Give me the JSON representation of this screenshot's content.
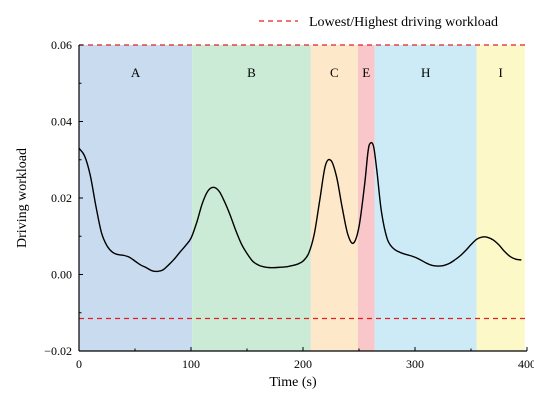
{
  "chart_data": {
    "type": "line",
    "title": "",
    "xlabel": "Time (s)",
    "ylabel": "Driving workload",
    "xlim": [
      0,
      400
    ],
    "ylim": [
      -0.02,
      0.06
    ],
    "x_ticks": [
      0,
      100,
      200,
      300,
      400
    ],
    "x_tick_labels": [
      "0",
      "100",
      "200",
      "300",
      "400"
    ],
    "y_ticks": [
      -0.02,
      0.0,
      0.02,
      0.04,
      0.06
    ],
    "y_tick_labels": [
      "−0.02",
      "0.00",
      "0.02",
      "0.04",
      "0.06"
    ],
    "grid": false,
    "legend": {
      "position": "top-right",
      "entries": [
        {
          "label": "Lowest/Highest driving workload",
          "color": "#e02020",
          "style": "dashed"
        }
      ]
    },
    "reference_lines": [
      {
        "y": 0.06,
        "color": "#e02020",
        "style": "dashed"
      },
      {
        "y": -0.0115,
        "color": "#e02020",
        "style": "dashed"
      }
    ],
    "phases": [
      {
        "label": "A",
        "start": 0,
        "end": 101,
        "color": "#c9dcef"
      },
      {
        "label": "B",
        "start": 101,
        "end": 207,
        "color": "#ccebd7"
      },
      {
        "label": "C",
        "start": 207,
        "end": 249,
        "color": "#fde9c9"
      },
      {
        "label": "E",
        "start": 249,
        "end": 264,
        "color": "#f9c6c9"
      },
      {
        "label": "H",
        "start": 264,
        "end": 355,
        "color": "#cdebf7"
      },
      {
        "label": "I",
        "start": 355,
        "end": 398,
        "color": "#fdf8c8"
      }
    ],
    "series": [
      {
        "color": "#000000",
        "x": [
          0,
          5,
          10,
          15,
          20,
          25,
          30,
          35,
          40,
          45,
          50,
          55,
          60,
          65,
          70,
          75,
          80,
          85,
          90,
          95,
          100,
          105,
          110,
          115,
          120,
          125,
          130,
          135,
          140,
          145,
          150,
          155,
          160,
          165,
          170,
          175,
          180,
          185,
          190,
          195,
          200,
          205,
          210,
          215,
          220,
          225,
          230,
          235,
          240,
          245,
          250,
          255,
          258,
          260,
          263,
          266,
          270,
          275,
          280,
          285,
          290,
          295,
          300,
          305,
          310,
          315,
          320,
          325,
          330,
          335,
          340,
          345,
          350,
          355,
          360,
          365,
          370,
          375,
          380,
          385,
          390,
          395
        ],
        "y": [
          0.033,
          0.031,
          0.026,
          0.018,
          0.011,
          0.0075,
          0.0058,
          0.0052,
          0.005,
          0.0045,
          0.0035,
          0.0025,
          0.0018,
          0.001,
          0.0008,
          0.0012,
          0.0025,
          0.004,
          0.0058,
          0.0075,
          0.0095,
          0.0135,
          0.0185,
          0.0218,
          0.0228,
          0.0218,
          0.019,
          0.0155,
          0.0115,
          0.008,
          0.0055,
          0.0035,
          0.0025,
          0.002,
          0.0018,
          0.0018,
          0.0019,
          0.002,
          0.0023,
          0.0027,
          0.0035,
          0.0055,
          0.0105,
          0.0195,
          0.0285,
          0.0298,
          0.0255,
          0.0175,
          0.0105,
          0.0082,
          0.0125,
          0.0235,
          0.032,
          0.0343,
          0.0335,
          0.027,
          0.0165,
          0.0095,
          0.007,
          0.006,
          0.0054,
          0.005,
          0.0045,
          0.0038,
          0.003,
          0.0024,
          0.0022,
          0.0023,
          0.0028,
          0.0037,
          0.0048,
          0.0062,
          0.0078,
          0.0092,
          0.0098,
          0.0097,
          0.009,
          0.0077,
          0.006,
          0.0047,
          0.004,
          0.0038
        ]
      }
    ]
  }
}
